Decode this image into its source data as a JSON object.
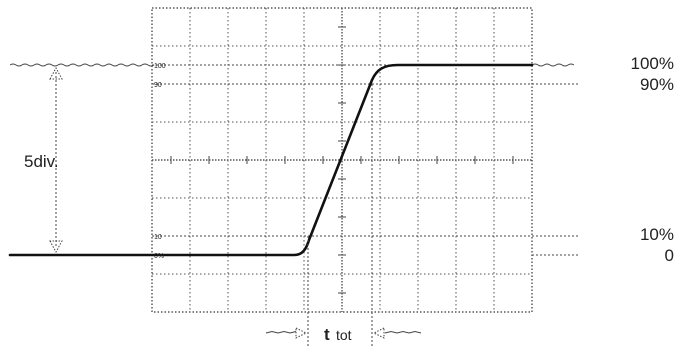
{
  "diagram": {
    "left_label": "5div.",
    "right_labels": {
      "top_upper": "100%",
      "top_lower": "90%",
      "bottom_upper": "10%",
      "bottom_lower": "0"
    },
    "scale_marks": {
      "mark_100": "100",
      "mark_90": "90",
      "mark_10": "10",
      "mark_0": "0%"
    },
    "time_label": {
      "main": "t",
      "sub": "tot"
    }
  }
}
